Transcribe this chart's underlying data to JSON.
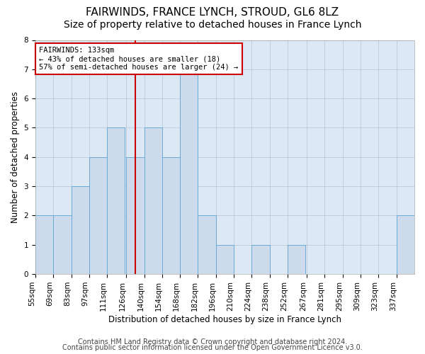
{
  "title": "FAIRWINDS, FRANCE LYNCH, STROUD, GL6 8LZ",
  "subtitle": "Size of property relative to detached houses in France Lynch",
  "xlabel": "Distribution of detached houses by size in France Lynch",
  "ylabel": "Number of detached properties",
  "footer1": "Contains HM Land Registry data © Crown copyright and database right 2024.",
  "footer2": "Contains public sector information licensed under the Open Government Licence v3.0.",
  "annotation_line1": "FAIRWINDS: 133sqm",
  "annotation_line2": "← 43% of detached houses are smaller (18)",
  "annotation_line3": "57% of semi-detached houses are larger (24) →",
  "bins": [
    55,
    69,
    83,
    97,
    111,
    126,
    140,
    154,
    168,
    182,
    196,
    210,
    224,
    238,
    252,
    267,
    281,
    295,
    309,
    323,
    337
  ],
  "values": [
    2,
    2,
    3,
    4,
    5,
    4,
    5,
    4,
    7,
    2,
    1,
    0,
    1,
    0,
    1,
    0,
    0,
    0,
    0,
    0,
    2
  ],
  "bar_color": "#cddaeb",
  "bar_edge_color": "#6aaad4",
  "red_line_x": 133,
  "ylim": [
    0,
    8
  ],
  "yticks": [
    0,
    1,
    2,
    3,
    4,
    5,
    6,
    7,
    8
  ],
  "background_color": "#ffffff",
  "ax_background": "#dce9f5",
  "grid_color": "#b0c4d8",
  "annotation_box_color": "#ffffff",
  "annotation_box_edge": "#cc0000",
  "red_line_color": "#cc0000",
  "title_fontsize": 11,
  "subtitle_fontsize": 10,
  "axis_label_fontsize": 8.5,
  "tick_fontsize": 7.5,
  "annotation_fontsize": 7.5,
  "footer_fontsize": 7
}
